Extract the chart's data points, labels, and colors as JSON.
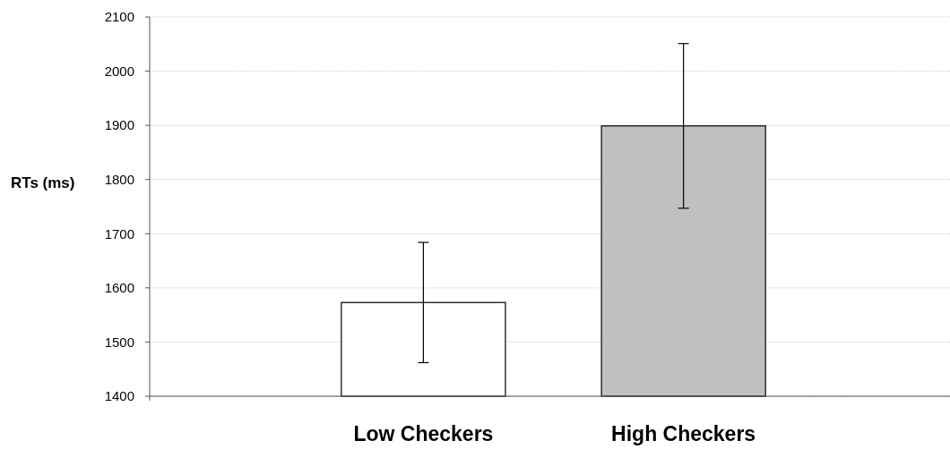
{
  "chart_data": {
    "type": "bar",
    "ylabel": "RTs (ms)",
    "categories": [
      "Low Checkers",
      "High Checkers"
    ],
    "values": [
      1573,
      1899
    ],
    "errors": [
      111,
      152
    ],
    "colors": [
      "#ffffff",
      "#c0c0c0"
    ],
    "ylim": [
      1400,
      2100
    ],
    "yticks": [
      1400,
      1500,
      1600,
      1700,
      1800,
      1900,
      2000,
      2100
    ],
    "grid": "y"
  }
}
